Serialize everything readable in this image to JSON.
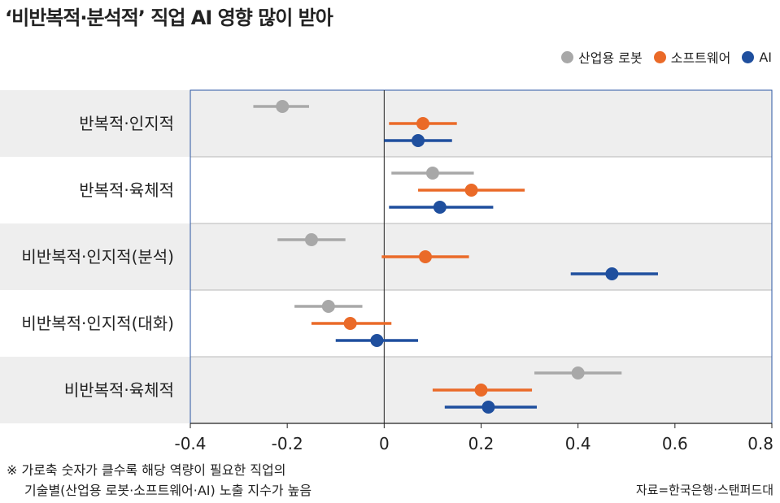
{
  "title": "‘비반복적·분석적’ 직업 AI 영향 많이 받아",
  "colors": {
    "robot": "#a8a8a8",
    "software": "#ea6a28",
    "ai": "#1f4f9e",
    "band": "#eeeeee"
  },
  "legend": [
    {
      "label": "산업용 로봇",
      "color": "#a8a8a8"
    },
    {
      "label": "소프트웨어",
      "color": "#ea6a28"
    },
    {
      "label": "AI",
      "color": "#1f4f9e"
    }
  ],
  "chart_data": {
    "type": "scatter",
    "subtype": "dot-with-interval",
    "categories": [
      "반복적·인지적",
      "반복적·육체적",
      "비반복적·인지적(분석)",
      "비반복적·인지적(대화)",
      "비반복적·육체적"
    ],
    "series": [
      {
        "name": "산업용 로봇",
        "values": [
          -0.21,
          0.1,
          -0.15,
          -0.115,
          0.4
        ],
        "low": [
          -0.27,
          0.015,
          -0.22,
          -0.185,
          0.31
        ],
        "high": [
          -0.155,
          0.185,
          -0.08,
          -0.045,
          0.49
        ]
      },
      {
        "name": "소프트웨어",
        "values": [
          0.08,
          0.18,
          0.085,
          -0.07,
          0.2
        ],
        "low": [
          0.01,
          0.07,
          -0.005,
          -0.15,
          0.1
        ],
        "high": [
          0.15,
          0.29,
          0.175,
          0.015,
          0.305
        ]
      },
      {
        "name": "AI",
        "values": [
          0.07,
          0.115,
          0.47,
          -0.015,
          0.215
        ],
        "low": [
          0.0,
          0.01,
          0.385,
          -0.1,
          0.125
        ],
        "high": [
          0.14,
          0.225,
          0.565,
          0.07,
          0.315
        ]
      }
    ],
    "xlim": [
      -0.4,
      0.8
    ],
    "xticks": [
      -0.4,
      -0.2,
      0,
      0.2,
      0.4,
      0.6,
      0.8
    ],
    "xtick_labels": [
      "-0.4",
      "-0.2",
      "0",
      "0.2",
      "0.4",
      "0.6",
      "0.8"
    ],
    "xlabel": "",
    "ylabel": ""
  },
  "footnote": {
    "line1": "※ 가로축 숫자가 클수록 해당 역량이 필요한 직업의",
    "line2": "기술별(산업용 로봇·소프트웨어·AI) 노출 지수가 높음"
  },
  "source": "자료=한국은행·스탠퍼드대"
}
